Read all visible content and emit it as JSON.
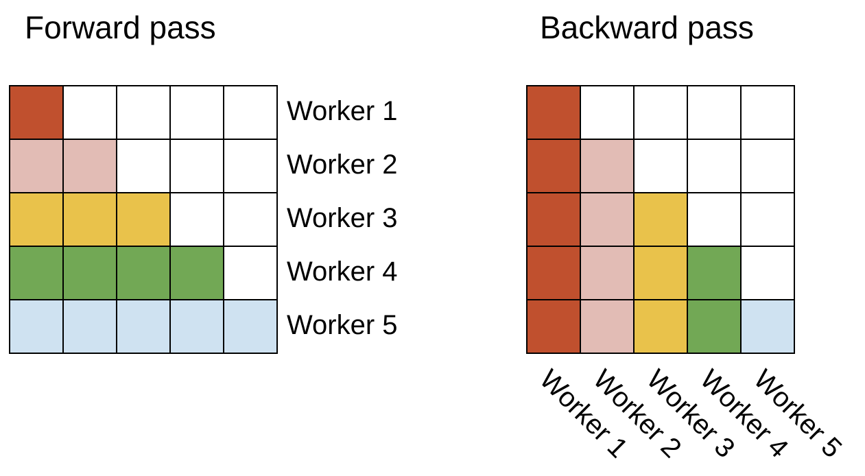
{
  "forward": {
    "title": "Forward pass",
    "row_labels": [
      "Worker 1",
      "Worker 2",
      "Worker 3",
      "Worker 4",
      "Worker 5"
    ]
  },
  "backward": {
    "title": "Backward pass",
    "col_labels": [
      "Worker 1",
      "Worker 2",
      "Worker 3",
      "Worker 4",
      "Worker 5"
    ]
  },
  "worker_colors": [
    "#c0502e",
    "#e2bcb5",
    "#e9c24b",
    "#72a855",
    "#cfe2f1"
  ],
  "empty_color": "#ffffff",
  "grid_size": 5
}
